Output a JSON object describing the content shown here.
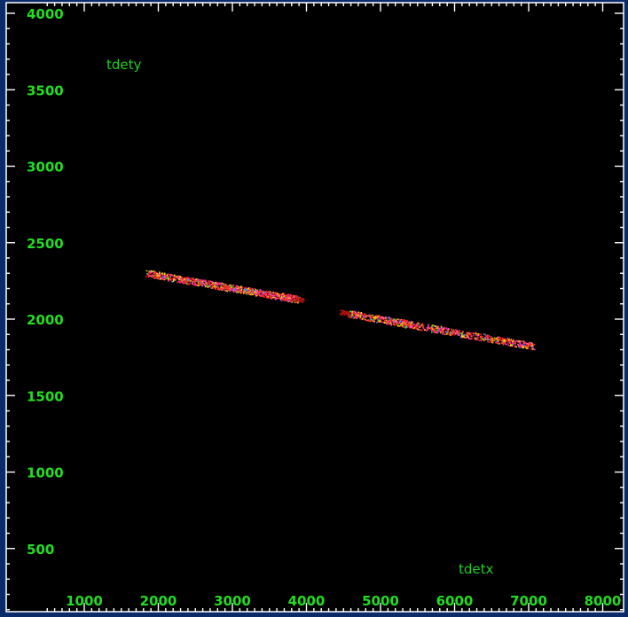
{
  "chart_data": {
    "type": "scatter",
    "title": "",
    "xlabel": "tdetx",
    "ylabel": "tdety",
    "xlim": [
      500,
      8000
    ],
    "ylim": [
      100,
      4000
    ],
    "x_ticks": [
      "1000",
      "2000",
      "3000",
      "4000",
      "5000",
      "6000",
      "7000",
      "8000"
    ],
    "y_ticks": [
      "500",
      "1000",
      "1500",
      "2000",
      "2500",
      "3000",
      "3500",
      "4000"
    ],
    "background": "#000000",
    "label_color": "#22dd22",
    "grid": false,
    "series": [
      {
        "x_start": 1850,
        "y_start": 2300,
        "x_end": 3900,
        "y_end": 2130
      },
      {
        "x_start": 4550,
        "y_start": 2040,
        "x_end": 7050,
        "y_end": 1825
      }
    ],
    "colors": [
      "#ff2a2a",
      "#ff40c0",
      "#ffd700",
      "#33dd33",
      "#3399ff",
      "#aa1111"
    ]
  }
}
